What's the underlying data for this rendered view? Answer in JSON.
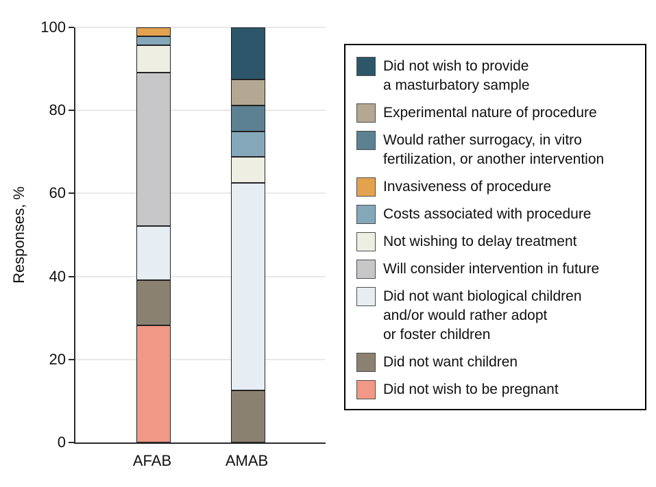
{
  "chart_data": {
    "type": "stacked_bar",
    "title": "",
    "ylabel": "Responses, %",
    "xlabel": "",
    "ylim": [
      0,
      100
    ],
    "yticks": [
      0,
      20,
      40,
      60,
      80,
      100
    ],
    "grid": true,
    "legend_position": "right",
    "categories": [
      "AFAB",
      "AMAB"
    ],
    "series": [
      {
        "name": "Did not wish to be pregnant",
        "color": "#F19986",
        "values": [
          28.26,
          0
        ]
      },
      {
        "name": "Did not want children",
        "color": "#8B8170",
        "values": [
          10.87,
          12.5
        ]
      },
      {
        "name": "Did not want biological children and/or would rather adopt or foster children",
        "color": "#E7EEF3",
        "values": [
          13.04,
          50.0
        ]
      },
      {
        "name": "Will consider intervention in future",
        "color": "#C7C7CA",
        "values": [
          36.96,
          0
        ]
      },
      {
        "name": "Not wishing to delay treatment",
        "color": "#EFEEE2",
        "values": [
          6.52,
          6.25
        ]
      },
      {
        "name": "Costs associated with procedure",
        "color": "#84A8BA",
        "values": [
          2.17,
          6.25
        ]
      },
      {
        "name": "Invasiveness of procedure",
        "color": "#E4A24F",
        "values": [
          2.17,
          0
        ]
      },
      {
        "name": "Would rather surrogacy, in vitro fertilization, or another intervention",
        "color": "#5C8192",
        "values": [
          0,
          6.25
        ]
      },
      {
        "name": "Experimental nature of procedure",
        "color": "#B3A892",
        "values": [
          0,
          6.25
        ]
      },
      {
        "name": "Did not wish to provide a masturbatory sample",
        "color": "#2E566A",
        "values": [
          0,
          12.5
        ]
      }
    ],
    "legend": {
      "items": [
        {
          "color": "#2E566A",
          "lines": [
            "Did not wish to provide",
            "a masturbatory sample"
          ]
        },
        {
          "color": "#B3A892",
          "lines": [
            "Experimental nature of procedure"
          ]
        },
        {
          "color": "#5C8192",
          "lines": [
            "Would rather surrogacy, in vitro",
            "fertilization, or another intervention"
          ]
        },
        {
          "color": "#E4A24F",
          "lines": [
            "Invasiveness of procedure"
          ]
        },
        {
          "color": "#84A8BA",
          "lines": [
            "Costs associated with procedure"
          ]
        },
        {
          "color": "#EFEEE2",
          "lines": [
            "Not wishing to delay treatment"
          ]
        },
        {
          "color": "#C7C7CA",
          "lines": [
            "Will consider intervention in future"
          ]
        },
        {
          "color": "#E7EEF3",
          "lines": [
            "Did not want biological children",
            "and/or would rather adopt",
            "or foster children"
          ]
        },
        {
          "color": "#8B8170",
          "lines": [
            "Did not want children"
          ]
        },
        {
          "color": "#F19986",
          "lines": [
            "Did not wish to be pregnant"
          ]
        }
      ]
    }
  }
}
